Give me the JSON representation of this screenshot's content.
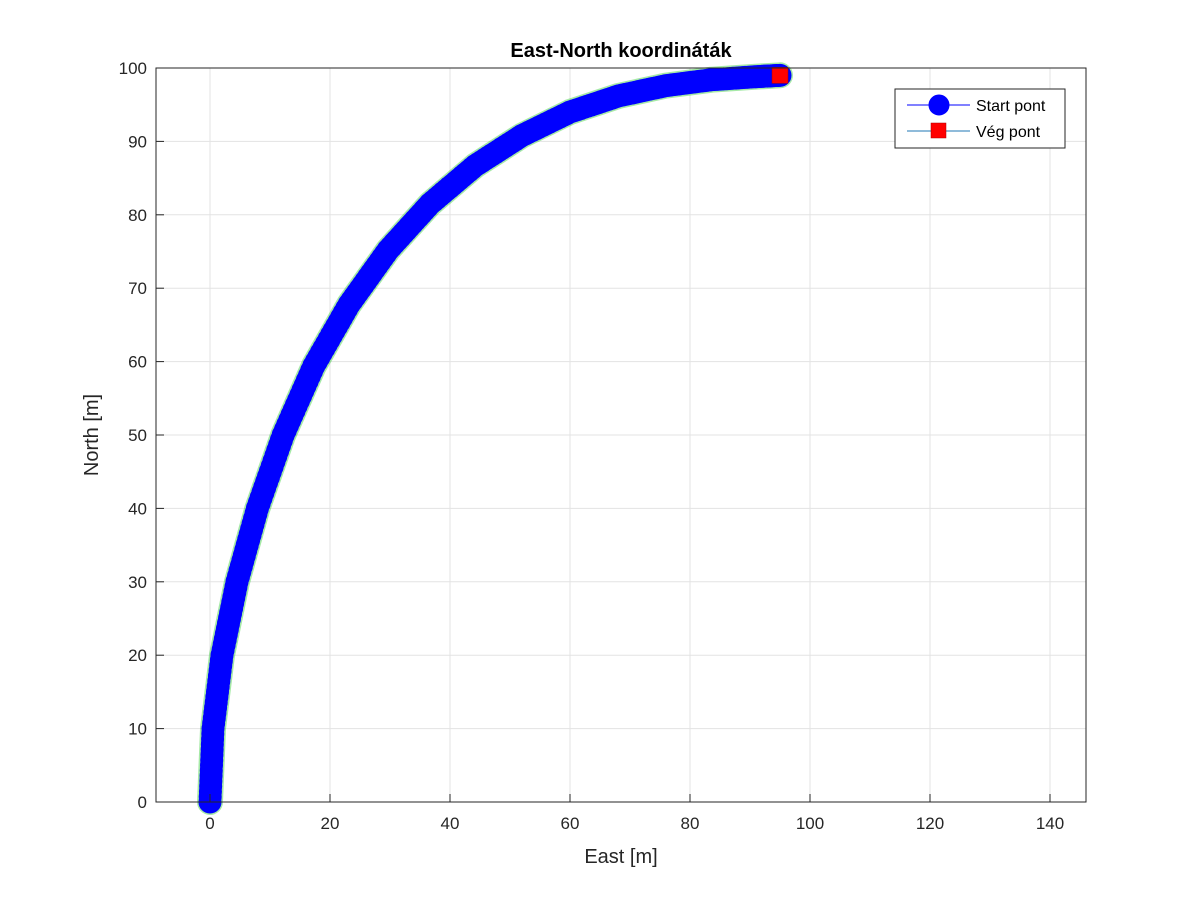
{
  "chart_data": {
    "type": "line",
    "title": "East-North koordináták",
    "xlabel": "East [m]",
    "ylabel": "North [m]",
    "xlim": [
      -9,
      146
    ],
    "ylim": [
      0,
      100
    ],
    "xticks": [
      0,
      20,
      40,
      60,
      80,
      100,
      120,
      140
    ],
    "yticks": [
      0,
      10,
      20,
      30,
      40,
      50,
      60,
      70,
      80,
      90,
      100
    ],
    "grid": true,
    "legend_position": "top-right",
    "legend": [
      "Start pont",
      "Vég pont"
    ],
    "path_description": "quarter-circle arc from (0,0) to about (95,99), centered near (100,0)",
    "series": [
      {
        "name": "Start pont",
        "marker": "circle",
        "color": "#0000ff",
        "edge_color": "#0000ff",
        "x": [
          0,
          0.5,
          2.0,
          4.5,
          7.9,
          12.2,
          17.3,
          23.2,
          29.7,
          36.7,
          44.2,
          52.0,
          60.0,
          68.1,
          76.0,
          83.6,
          90.7,
          95
        ],
        "y": [
          0,
          10,
          20,
          30,
          40,
          50,
          59.4,
          67.8,
          75.2,
          81.5,
          86.7,
          90.8,
          94.0,
          96.2,
          97.6,
          98.4,
          98.8,
          99
        ]
      },
      {
        "name": "Vég pont",
        "marker": "square",
        "color": "#ff0000",
        "x": [
          95
        ],
        "y": [
          99
        ]
      }
    ]
  }
}
